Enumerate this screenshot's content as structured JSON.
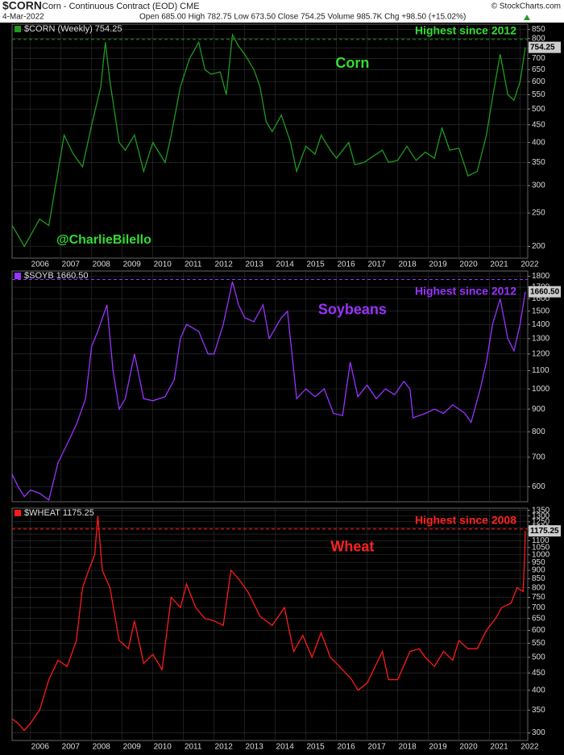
{
  "header": {
    "symbol": "$CORN",
    "description": "Corn - Continuous Contract (EOD) CME",
    "date": "4-Mar-2022",
    "quote": "Open 685.00 High 782.75 Low 673.50 Close 754.25 Volume 985.7K Chg +98.50 (+15.02%)",
    "source": "© StockCharts.com"
  },
  "chart_data": [
    {
      "type": "line",
      "title": "$CORN (Weekly) 754.25",
      "label": "Corn",
      "annotation": "Highest since 2012",
      "watermark": "@CharlieBilello",
      "label_color": "#33dd33",
      "yscale": "log",
      "grid": true,
      "show_xtick_labels": true,
      "reference_value": 795,
      "last_label": "754.25",
      "xlim": [
        2005.4,
        2022.25
      ],
      "xticks": [
        2006,
        2007,
        2008,
        2009,
        2010,
        2011,
        2012,
        2013,
        2014,
        2015,
        2016,
        2017,
        2018,
        2019,
        2020,
        2021,
        2022
      ],
      "ylim": [
        185,
        880
      ],
      "yticks": [
        200,
        250,
        300,
        350,
        400,
        450,
        500,
        550,
        600,
        650,
        700,
        750,
        800,
        850
      ],
      "x": [
        2005.4,
        2005.6,
        2005.8,
        2006.0,
        2006.3,
        2006.6,
        2006.9,
        2007.1,
        2007.4,
        2007.7,
        2008.0,
        2008.3,
        2008.45,
        2008.6,
        2008.9,
        2009.1,
        2009.4,
        2009.7,
        2010.0,
        2010.4,
        2010.6,
        2010.9,
        2011.2,
        2011.5,
        2011.7,
        2011.9,
        2012.2,
        2012.4,
        2012.6,
        2012.8,
        2013.0,
        2013.3,
        2013.5,
        2013.7,
        2013.9,
        2014.2,
        2014.5,
        2014.7,
        2015.0,
        2015.3,
        2015.5,
        2015.8,
        2016.0,
        2016.4,
        2016.6,
        2016.9,
        2017.2,
        2017.5,
        2017.7,
        2018.0,
        2018.3,
        2018.6,
        2018.9,
        2019.2,
        2019.45,
        2019.7,
        2020.0,
        2020.3,
        2020.6,
        2020.9,
        2021.1,
        2021.35,
        2021.6,
        2021.8,
        2022.0,
        2022.17
      ],
      "series": [
        {
          "name": "$CORN",
          "color": "#1f9a1f",
          "values": [
            230,
            215,
            200,
            215,
            240,
            230,
            330,
            420,
            370,
            340,
            450,
            580,
            780,
            600,
            400,
            380,
            420,
            330,
            400,
            350,
            420,
            580,
            700,
            780,
            650,
            630,
            640,
            550,
            820,
            760,
            720,
            650,
            580,
            460,
            430,
            480,
            400,
            330,
            390,
            370,
            420,
            380,
            360,
            400,
            345,
            350,
            365,
            380,
            350,
            355,
            390,
            355,
            375,
            360,
            440,
            380,
            385,
            320,
            330,
            420,
            540,
            720,
            550,
            530,
            600,
            754.25
          ]
        }
      ]
    },
    {
      "type": "line",
      "title": "$SOYB 1660.50",
      "label": "Soybeans",
      "annotation": "Highest since 2012",
      "label_color": "#9933ff",
      "yscale": "log",
      "grid": true,
      "show_xtick_labels": false,
      "reference_value": 1770,
      "last_label": "1660.50",
      "xlim": [
        2005.4,
        2022.25
      ],
      "xticks": [
        2006,
        2007,
        2008,
        2009,
        2010,
        2011,
        2012,
        2013,
        2014,
        2015,
        2016,
        2017,
        2018,
        2019,
        2020,
        2021,
        2022
      ],
      "ylim": [
        555,
        1850
      ],
      "yticks": [
        600,
        700,
        800,
        900,
        1000,
        1100,
        1200,
        1300,
        1400,
        1500,
        1600,
        1700,
        1800
      ],
      "x": [
        2005.4,
        2005.6,
        2005.8,
        2006.0,
        2006.3,
        2006.6,
        2006.9,
        2007.2,
        2007.5,
        2007.8,
        2008.0,
        2008.2,
        2008.5,
        2008.7,
        2008.9,
        2009.1,
        2009.4,
        2009.7,
        2010.0,
        2010.4,
        2010.7,
        2010.9,
        2011.1,
        2011.5,
        2011.8,
        2012.0,
        2012.3,
        2012.6,
        2012.8,
        2013.0,
        2013.3,
        2013.6,
        2013.8,
        2014.2,
        2014.4,
        2014.7,
        2015.0,
        2015.3,
        2015.6,
        2015.9,
        2016.2,
        2016.45,
        2016.7,
        2017.0,
        2017.3,
        2017.6,
        2017.9,
        2018.2,
        2018.4,
        2018.5,
        2018.9,
        2019.2,
        2019.5,
        2019.8,
        2020.2,
        2020.4,
        2020.7,
        2020.9,
        2021.1,
        2021.35,
        2021.6,
        2021.8,
        2022.0,
        2022.17
      ],
      "series": [
        {
          "name": "$SOYB",
          "color": "#9933ff",
          "values": [
            640,
            600,
            570,
            590,
            580,
            560,
            680,
            750,
            830,
            950,
            1250,
            1350,
            1550,
            1100,
            900,
            950,
            1200,
            950,
            940,
            960,
            1050,
            1300,
            1400,
            1350,
            1200,
            1200,
            1400,
            1750,
            1550,
            1450,
            1420,
            1550,
            1300,
            1450,
            1500,
            950,
            1000,
            960,
            1000,
            880,
            870,
            1150,
            960,
            1020,
            950,
            1000,
            970,
            1040,
            1000,
            860,
            880,
            900,
            880,
            920,
            880,
            840,
            1000,
            1150,
            1400,
            1600,
            1300,
            1220,
            1400,
            1660.5
          ]
        }
      ]
    },
    {
      "type": "line",
      "title": "$WHEAT 1175.25",
      "label": "Wheat",
      "annotation": "Highest since 2008",
      "label_color": "#ff2222",
      "yscale": "log",
      "grid": true,
      "show_xtick_labels": true,
      "reference_value": 1190,
      "last_label": "1175.25",
      "xlim": [
        2005.4,
        2022.25
      ],
      "xticks": [
        2006,
        2007,
        2008,
        2009,
        2010,
        2011,
        2012,
        2013,
        2014,
        2015,
        2016,
        2017,
        2018,
        2019,
        2020,
        2021,
        2022
      ],
      "ylim": [
        285,
        1370
      ],
      "yticks": [
        300,
        350,
        400,
        450,
        500,
        550,
        600,
        650,
        700,
        750,
        800,
        850,
        900,
        950,
        1000,
        1050,
        1100,
        1150,
        1200,
        1250,
        1300,
        1350
      ],
      "x": [
        2005.4,
        2005.6,
        2005.8,
        2006.0,
        2006.3,
        2006.6,
        2006.9,
        2007.2,
        2007.5,
        2007.7,
        2007.9,
        2008.1,
        2008.2,
        2008.35,
        2008.6,
        2008.9,
        2009.2,
        2009.4,
        2009.7,
        2010.0,
        2010.3,
        2010.6,
        2010.9,
        2011.1,
        2011.4,
        2011.7,
        2012.0,
        2012.3,
        2012.55,
        2012.8,
        2013.1,
        2013.5,
        2013.9,
        2014.3,
        2014.6,
        2014.9,
        2015.2,
        2015.5,
        2015.8,
        2016.1,
        2016.5,
        2016.7,
        2017.0,
        2017.5,
        2017.7,
        2018.0,
        2018.4,
        2018.7,
        2018.9,
        2019.2,
        2019.5,
        2019.8,
        2020.0,
        2020.3,
        2020.6,
        2020.9,
        2021.2,
        2021.4,
        2021.7,
        2021.9,
        2022.1,
        2022.15,
        2022.17
      ],
      "series": [
        {
          "name": "$WHEAT",
          "color": "#ff1a1a",
          "values": [
            330,
            320,
            305,
            320,
            350,
            430,
            490,
            470,
            560,
            800,
            900,
            1000,
            1300,
            900,
            800,
            560,
            530,
            640,
            480,
            510,
            460,
            750,
            700,
            820,
            700,
            650,
            640,
            620,
            900,
            850,
            780,
            660,
            620,
            700,
            520,
            580,
            500,
            590,
            500,
            470,
            430,
            400,
            420,
            520,
            430,
            430,
            520,
            530,
            500,
            470,
            520,
            490,
            560,
            530,
            530,
            600,
            650,
            700,
            720,
            800,
            780,
            1000,
            1175.25
          ]
        }
      ]
    }
  ]
}
